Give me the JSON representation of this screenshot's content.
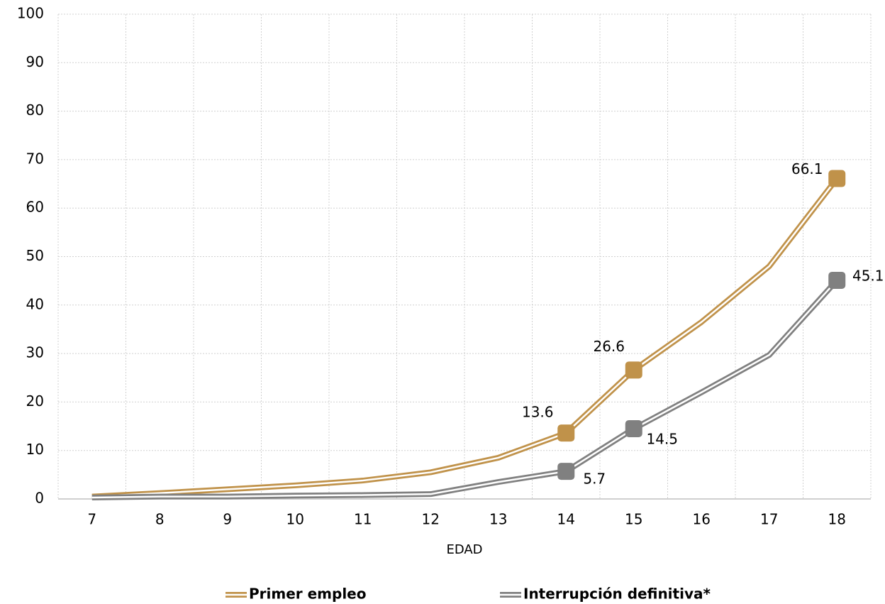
{
  "chart_data": {
    "type": "line",
    "x_label": "EDAD",
    "categories": [
      "7",
      "8",
      "9",
      "10",
      "11",
      "12",
      "13",
      "14",
      "15",
      "16",
      "17",
      "18"
    ],
    "series": [
      {
        "name": "Primer empleo",
        "color": "#c0924a",
        "values": [
          0.5,
          1.2,
          2,
          2.8,
          3.8,
          5.5,
          8.5,
          13.6,
          26.6,
          36.5,
          48,
          66.1
        ],
        "value_labels": [
          null,
          null,
          null,
          null,
          null,
          null,
          null,
          "13.6",
          "26.6",
          null,
          null,
          "66.1"
        ]
      },
      {
        "name": "Interrupción definitiva*",
        "color": "#808080",
        "values": [
          0.3,
          0.5,
          0.5,
          0.7,
          0.8,
          1,
          3.5,
          5.7,
          14.5,
          22,
          29.7,
          45.1
        ],
        "value_labels": [
          null,
          null,
          null,
          null,
          null,
          null,
          null,
          "5.7",
          "14.5",
          null,
          null,
          "45.1"
        ]
      }
    ],
    "ylim": [
      0,
      100
    ],
    "yticks": [
      0,
      10,
      20,
      30,
      40,
      50,
      60,
      70,
      80,
      90,
      100
    ],
    "grid": true,
    "legend": "bottom"
  }
}
